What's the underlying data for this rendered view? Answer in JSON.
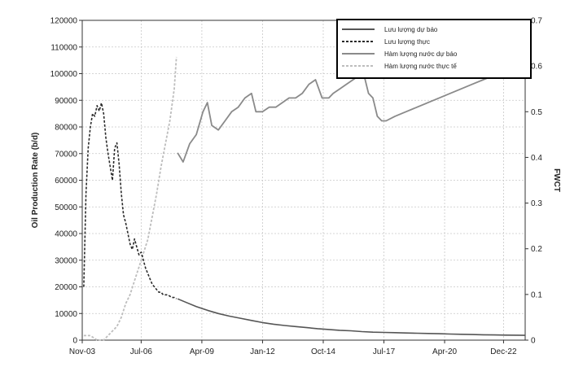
{
  "chart_data": {
    "type": "line",
    "title": "",
    "xlabel": "",
    "ylabel": "Oil Production Rate (b/d)",
    "y2label": "FWCT",
    "x_ticks": [
      "Nov-03",
      "Jul-06",
      "Apr-09",
      "Jan-12",
      "Oct-14",
      "Jul-17",
      "Apr-20",
      "Dec-22"
    ],
    "x_tick_years": [
      2003.83,
      2006.5,
      2009.25,
      2012.0,
      2014.75,
      2017.5,
      2020.25,
      2022.92
    ],
    "xlim": [
      2003.83,
      2023.9
    ],
    "ylim": [
      0,
      120000
    ],
    "y_ticks": [
      "0",
      "10000",
      "20000",
      "30000",
      "40000",
      "50000",
      "60000",
      "70000",
      "80000",
      "90000",
      "100000",
      "110000",
      "120000"
    ],
    "y2lim": [
      0,
      0.7
    ],
    "y2_ticks": [
      "0",
      "0.1",
      "0.2",
      "0.3",
      "0.4",
      "0.5",
      "0.6",
      "0.7"
    ],
    "grid": true,
    "legend_position": "top-right",
    "colors": {
      "rate_forecast": "#555555",
      "rate_actual": "#2a2a2a",
      "wc_forecast": "#8a8a8a",
      "wc_actual": "#bdbdbd"
    },
    "series": [
      {
        "name": "Lưu lượng dự báo",
        "axis": "left",
        "style": "solid",
        "x": [
          2008.15,
          2008.5,
          2009.0,
          2009.5,
          2010.0,
          2010.5,
          2011.0,
          2011.5,
          2012.0,
          2012.5,
          2013.0,
          2013.5,
          2014.0,
          2014.5,
          2015.0,
          2015.5,
          2016.0,
          2016.5,
          2017.0,
          2017.5,
          2018.0,
          2018.5,
          2019.0,
          2019.5,
          2020.0,
          2020.5,
          2021.0,
          2021.5,
          2022.0,
          2022.5,
          2023.0,
          2023.5,
          2023.9
        ],
        "y": [
          15500,
          14300,
          12600,
          11200,
          10000,
          9000,
          8200,
          7400,
          6600,
          6000,
          5500,
          5100,
          4700,
          4300,
          4000,
          3700,
          3500,
          3200,
          3000,
          2900,
          2800,
          2700,
          2600,
          2500,
          2400,
          2300,
          2200,
          2100,
          2000,
          1950,
          1900,
          1850,
          1800
        ]
      },
      {
        "name": "Lưu lượng thực",
        "axis": "left",
        "style": "dashed",
        "x": [
          2003.9,
          2004.0,
          2004.1,
          2004.2,
          2004.3,
          2004.4,
          2004.5,
          2004.6,
          2004.7,
          2004.8,
          2004.9,
          2005.0,
          2005.1,
          2005.2,
          2005.3,
          2005.4,
          2005.5,
          2005.6,
          2005.7,
          2005.8,
          2005.9,
          2006.0,
          2006.1,
          2006.2,
          2006.3,
          2006.4,
          2006.5,
          2006.6,
          2006.7,
          2006.8,
          2006.9,
          2007.0,
          2007.1,
          2007.2,
          2007.3,
          2007.4,
          2007.5,
          2007.6,
          2007.7,
          2007.8,
          2007.9,
          2008.0,
          2008.1
        ],
        "y": [
          20000,
          55000,
          72000,
          80000,
          85000,
          84000,
          88000,
          86000,
          89000,
          85000,
          76000,
          70000,
          65000,
          60000,
          72000,
          74000,
          66000,
          55000,
          47000,
          44000,
          40000,
          36000,
          34000,
          38000,
          35000,
          32000,
          33000,
          30000,
          27000,
          25000,
          23000,
          21000,
          20000,
          19000,
          18000,
          18000,
          17000,
          17000,
          17000,
          16500,
          16000,
          16000,
          15500
        ]
      },
      {
        "name": "Hàm lượng nước dự báo",
        "axis": "right",
        "style": "solid",
        "x": [
          2008.15,
          2008.4,
          2008.7,
          2009.0,
          2009.3,
          2009.5,
          2009.7,
          2010.0,
          2010.3,
          2010.6,
          2010.9,
          2011.2,
          2011.5,
          2011.7,
          2012.0,
          2012.3,
          2012.6,
          2012.9,
          2013.2,
          2013.5,
          2013.8,
          2014.1,
          2014.4,
          2014.7,
          2015.0,
          2015.2,
          2015.5,
          2015.8,
          2016.1,
          2016.4,
          2016.6,
          2016.8,
          2017.0,
          2017.2,
          2017.4,
          2017.6,
          2018.0,
          2018.5,
          2019.0,
          2019.5,
          2020.0,
          2020.5,
          2021.0,
          2021.5,
          2022.0,
          2022.5,
          2023.0,
          2023.5,
          2023.9
        ],
        "y": [
          0.41,
          0.39,
          0.43,
          0.45,
          0.5,
          0.52,
          0.47,
          0.46,
          0.48,
          0.5,
          0.51,
          0.53,
          0.54,
          0.5,
          0.5,
          0.51,
          0.51,
          0.52,
          0.53,
          0.53,
          0.54,
          0.56,
          0.57,
          0.53,
          0.53,
          0.54,
          0.55,
          0.56,
          0.57,
          0.58,
          0.58,
          0.54,
          0.53,
          0.49,
          0.48,
          0.48,
          0.49,
          0.5,
          0.51,
          0.52,
          0.53,
          0.54,
          0.55,
          0.56,
          0.57,
          0.58,
          0.59,
          0.61,
          0.64
        ]
      },
      {
        "name": "Hàm lượng nước thực tế",
        "axis": "right",
        "style": "dashed",
        "x": [
          2003.9,
          2004.2,
          2004.5,
          2004.8,
          2005.0,
          2005.2,
          2005.4,
          2005.6,
          2005.8,
          2006.0,
          2006.2,
          2006.4,
          2006.6,
          2006.8,
          2007.0,
          2007.2,
          2007.4,
          2007.6,
          2007.8,
          2008.0,
          2008.1
        ],
        "y": [
          0.01,
          0.01,
          0.0,
          0.0,
          0.01,
          0.02,
          0.03,
          0.05,
          0.08,
          0.1,
          0.13,
          0.16,
          0.19,
          0.22,
          0.27,
          0.32,
          0.38,
          0.43,
          0.48,
          0.55,
          0.62
        ]
      }
    ],
    "annotations": []
  }
}
